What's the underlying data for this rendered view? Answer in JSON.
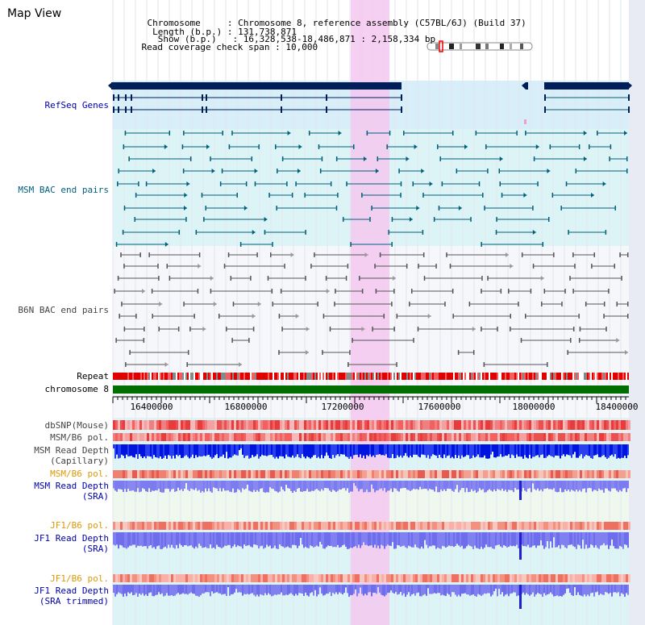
{
  "page": {
    "title": "Map View",
    "info": {
      "chromosome_key": "Chromosome",
      "chromosome_value": "Chromosome 8, reference assembly (C57BL/6J) (Build 37)",
      "length_key": "Length (b.p.)",
      "length_value": "131,738,871",
      "show_key": "Show (b.p.)",
      "show_value": "16,328,538-18,486,871 : 2,158,334 bp",
      "coverage_key": "Read coverage check span",
      "coverage_value": "10,000"
    }
  },
  "tracks": {
    "refseq": "RefSeq Genes",
    "msm_bac": "MSM BAC end pairs",
    "b6n_bac": "B6N BAC end pairs",
    "repeat": "Repeat",
    "chromosome": "chromosome 8",
    "dbsnp": "dbSNP(Mouse)",
    "msm_b6_pol_1": "MSM/B6 pol.",
    "msm_read_depth_cap_1": "MSM Read Depth",
    "msm_read_depth_cap_2": "(Capillary)",
    "msm_b6_pol_2": "MSM/B6 pol.",
    "msm_read_depth_sra_1": "MSM Read Depth",
    "msm_read_depth_sra_2": "(SRA)",
    "jf1_b6_pol_1": "JF1/B6 pol.",
    "jf1_read_depth_sra_1": "JF1 Read Depth",
    "jf1_read_depth_sra_2": "(SRA)",
    "jf1_b6_pol_2": "JF1/B6 pol.",
    "jf1_read_depth_trim_1": "JF1 Read Depth",
    "jf1_read_depth_trim_2": "(SRA trimmed)"
  },
  "axis": {
    "ticks": [
      "16400000",
      "16800000",
      "17200000",
      "17600000",
      "18000000",
      "18400000"
    ]
  },
  "colors": {
    "navy": "#001e5a",
    "teal": "#00607a",
    "gray": "#555555",
    "green": "#006e00",
    "highlight": "#f4c8f0",
    "label_blue": "#0000aa",
    "label_teal": "#006080",
    "label_gray": "#444444",
    "label_orange": "#dd9900"
  }
}
